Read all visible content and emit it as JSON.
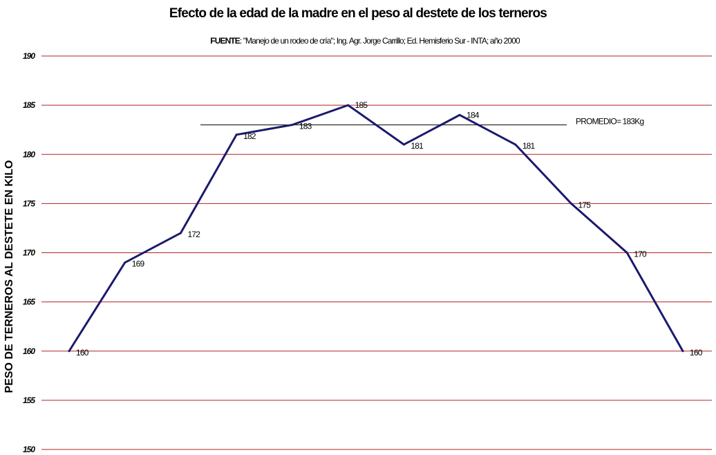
{
  "chart_data": {
    "type": "line",
    "title": "Efecto de la edad de la madre en el peso al destete de los terneros",
    "subtitle_label": "FUENTE",
    "subtitle_text": ": \"Manejo de un rodeo de cría\"; Ing. Agr. Jorge Carrillo; Ed. Hemisferio Sur - INTA; año 2000",
    "xlabel": "",
    "ylabel": "PESO DE TERNEROS AL DESTETE EN KILO",
    "ylim": [
      150,
      190
    ],
    "yticks": [
      150,
      155,
      160,
      165,
      170,
      175,
      180,
      185,
      190
    ],
    "grid": true,
    "x": [
      1,
      2,
      3,
      4,
      5,
      6,
      7,
      8,
      9,
      10,
      11,
      12
    ],
    "series": [
      {
        "values": [
          160,
          169,
          172,
          182,
          183,
          185,
          181,
          184,
          181,
          175,
          170,
          160
        ],
        "color": "#1a1a6e"
      }
    ],
    "data_labels": [
      "160",
      "169",
      "172",
      "182",
      "183",
      "185",
      "181",
      "184",
      "181",
      "175",
      "170",
      "160"
    ],
    "reference_line": {
      "value": 183,
      "label": "PROMEDIO= 183Kg",
      "color": "#000000"
    },
    "grid_color": "#b22222"
  }
}
